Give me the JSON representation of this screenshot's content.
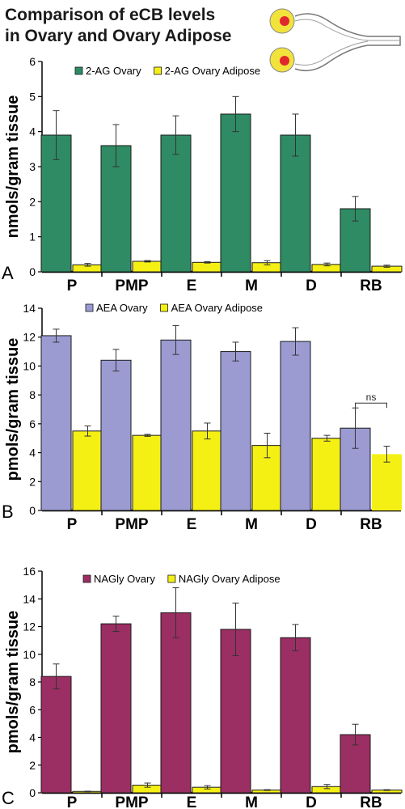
{
  "figure": {
    "title_line1": "Comparison of eCB levels",
    "title_line2": "in Ovary and Ovary Adipose"
  },
  "colors": {
    "green": "#2e8b63",
    "yellow": "#f5f014",
    "lavender": "#9b9bd2",
    "maroon": "#9b2e62",
    "illustration_fill": "#f2e23c",
    "illustration_center": "#e0282e"
  },
  "chart_data": [
    {
      "type": "bar",
      "panel_label": "A",
      "ylabel": "nmols/gram tissue",
      "ylim": [
        0,
        6
      ],
      "yticks": [
        0,
        1,
        2,
        3,
        4,
        5,
        6
      ],
      "categories": [
        "P",
        "PMP",
        "E",
        "M",
        "D",
        "RB"
      ],
      "legend_position": "top",
      "series": [
        {
          "name": "2-AG Ovary",
          "color": "#2e8b63",
          "values": [
            3.9,
            3.6,
            3.9,
            4.5,
            3.9,
            1.8
          ],
          "errors": [
            0.7,
            0.6,
            0.55,
            0.5,
            0.6,
            0.35
          ]
        },
        {
          "name": "2-AG Ovary Adipose",
          "color": "#f5f014",
          "values": [
            0.2,
            0.3,
            0.27,
            0.26,
            0.21,
            0.16
          ],
          "errors": [
            0.04,
            0.02,
            0.02,
            0.06,
            0.04,
            0.03
          ]
        }
      ],
      "annotations": []
    },
    {
      "type": "bar",
      "panel_label": "B",
      "ylabel": "pmols/gram tissue",
      "ylim": [
        0,
        14
      ],
      "yticks": [
        0,
        2,
        4,
        6,
        8,
        10,
        12,
        14
      ],
      "categories": [
        "P",
        "PMP",
        "E",
        "M",
        "D",
        "RB"
      ],
      "legend_position": "top",
      "series": [
        {
          "name": "AEA Ovary",
          "color": "#9b9bd2",
          "values": [
            12.1,
            10.4,
            11.8,
            11.0,
            11.7,
            5.7
          ],
          "errors": [
            0.45,
            0.75,
            1.0,
            0.65,
            0.95,
            1.4
          ]
        },
        {
          "name": "AEA Ovary Adipose",
          "color": "#f5f014",
          "values": [
            5.5,
            5.2,
            5.5,
            4.5,
            5.0,
            3.9
          ],
          "errors": [
            0.35,
            0.07,
            0.55,
            0.85,
            0.2,
            0.55
          ]
        }
      ],
      "annotations": [
        {
          "text": "ns",
          "category": "RB"
        }
      ]
    },
    {
      "type": "bar",
      "panel_label": "C",
      "ylabel": "pmols/gram tissue",
      "ylim": [
        0,
        16
      ],
      "yticks": [
        0,
        2,
        4,
        6,
        8,
        10,
        12,
        14,
        16
      ],
      "categories": [
        "P",
        "PMP",
        "E",
        "M",
        "D",
        "RB"
      ],
      "legend_position": "top",
      "series": [
        {
          "name": "NAGly Ovary",
          "color": "#9b2e62",
          "values": [
            8.4,
            12.2,
            13.0,
            11.8,
            11.2,
            4.2
          ],
          "errors": [
            0.9,
            0.55,
            1.8,
            1.9,
            0.95,
            0.75
          ]
        },
        {
          "name": "NAGly Ovary Adipose",
          "color": "#f5f014",
          "values": [
            0.1,
            0.55,
            0.4,
            0.2,
            0.45,
            0.2
          ],
          "errors": [
            0.02,
            0.15,
            0.12,
            0.03,
            0.15,
            0.03
          ]
        }
      ],
      "annotations": []
    }
  ]
}
